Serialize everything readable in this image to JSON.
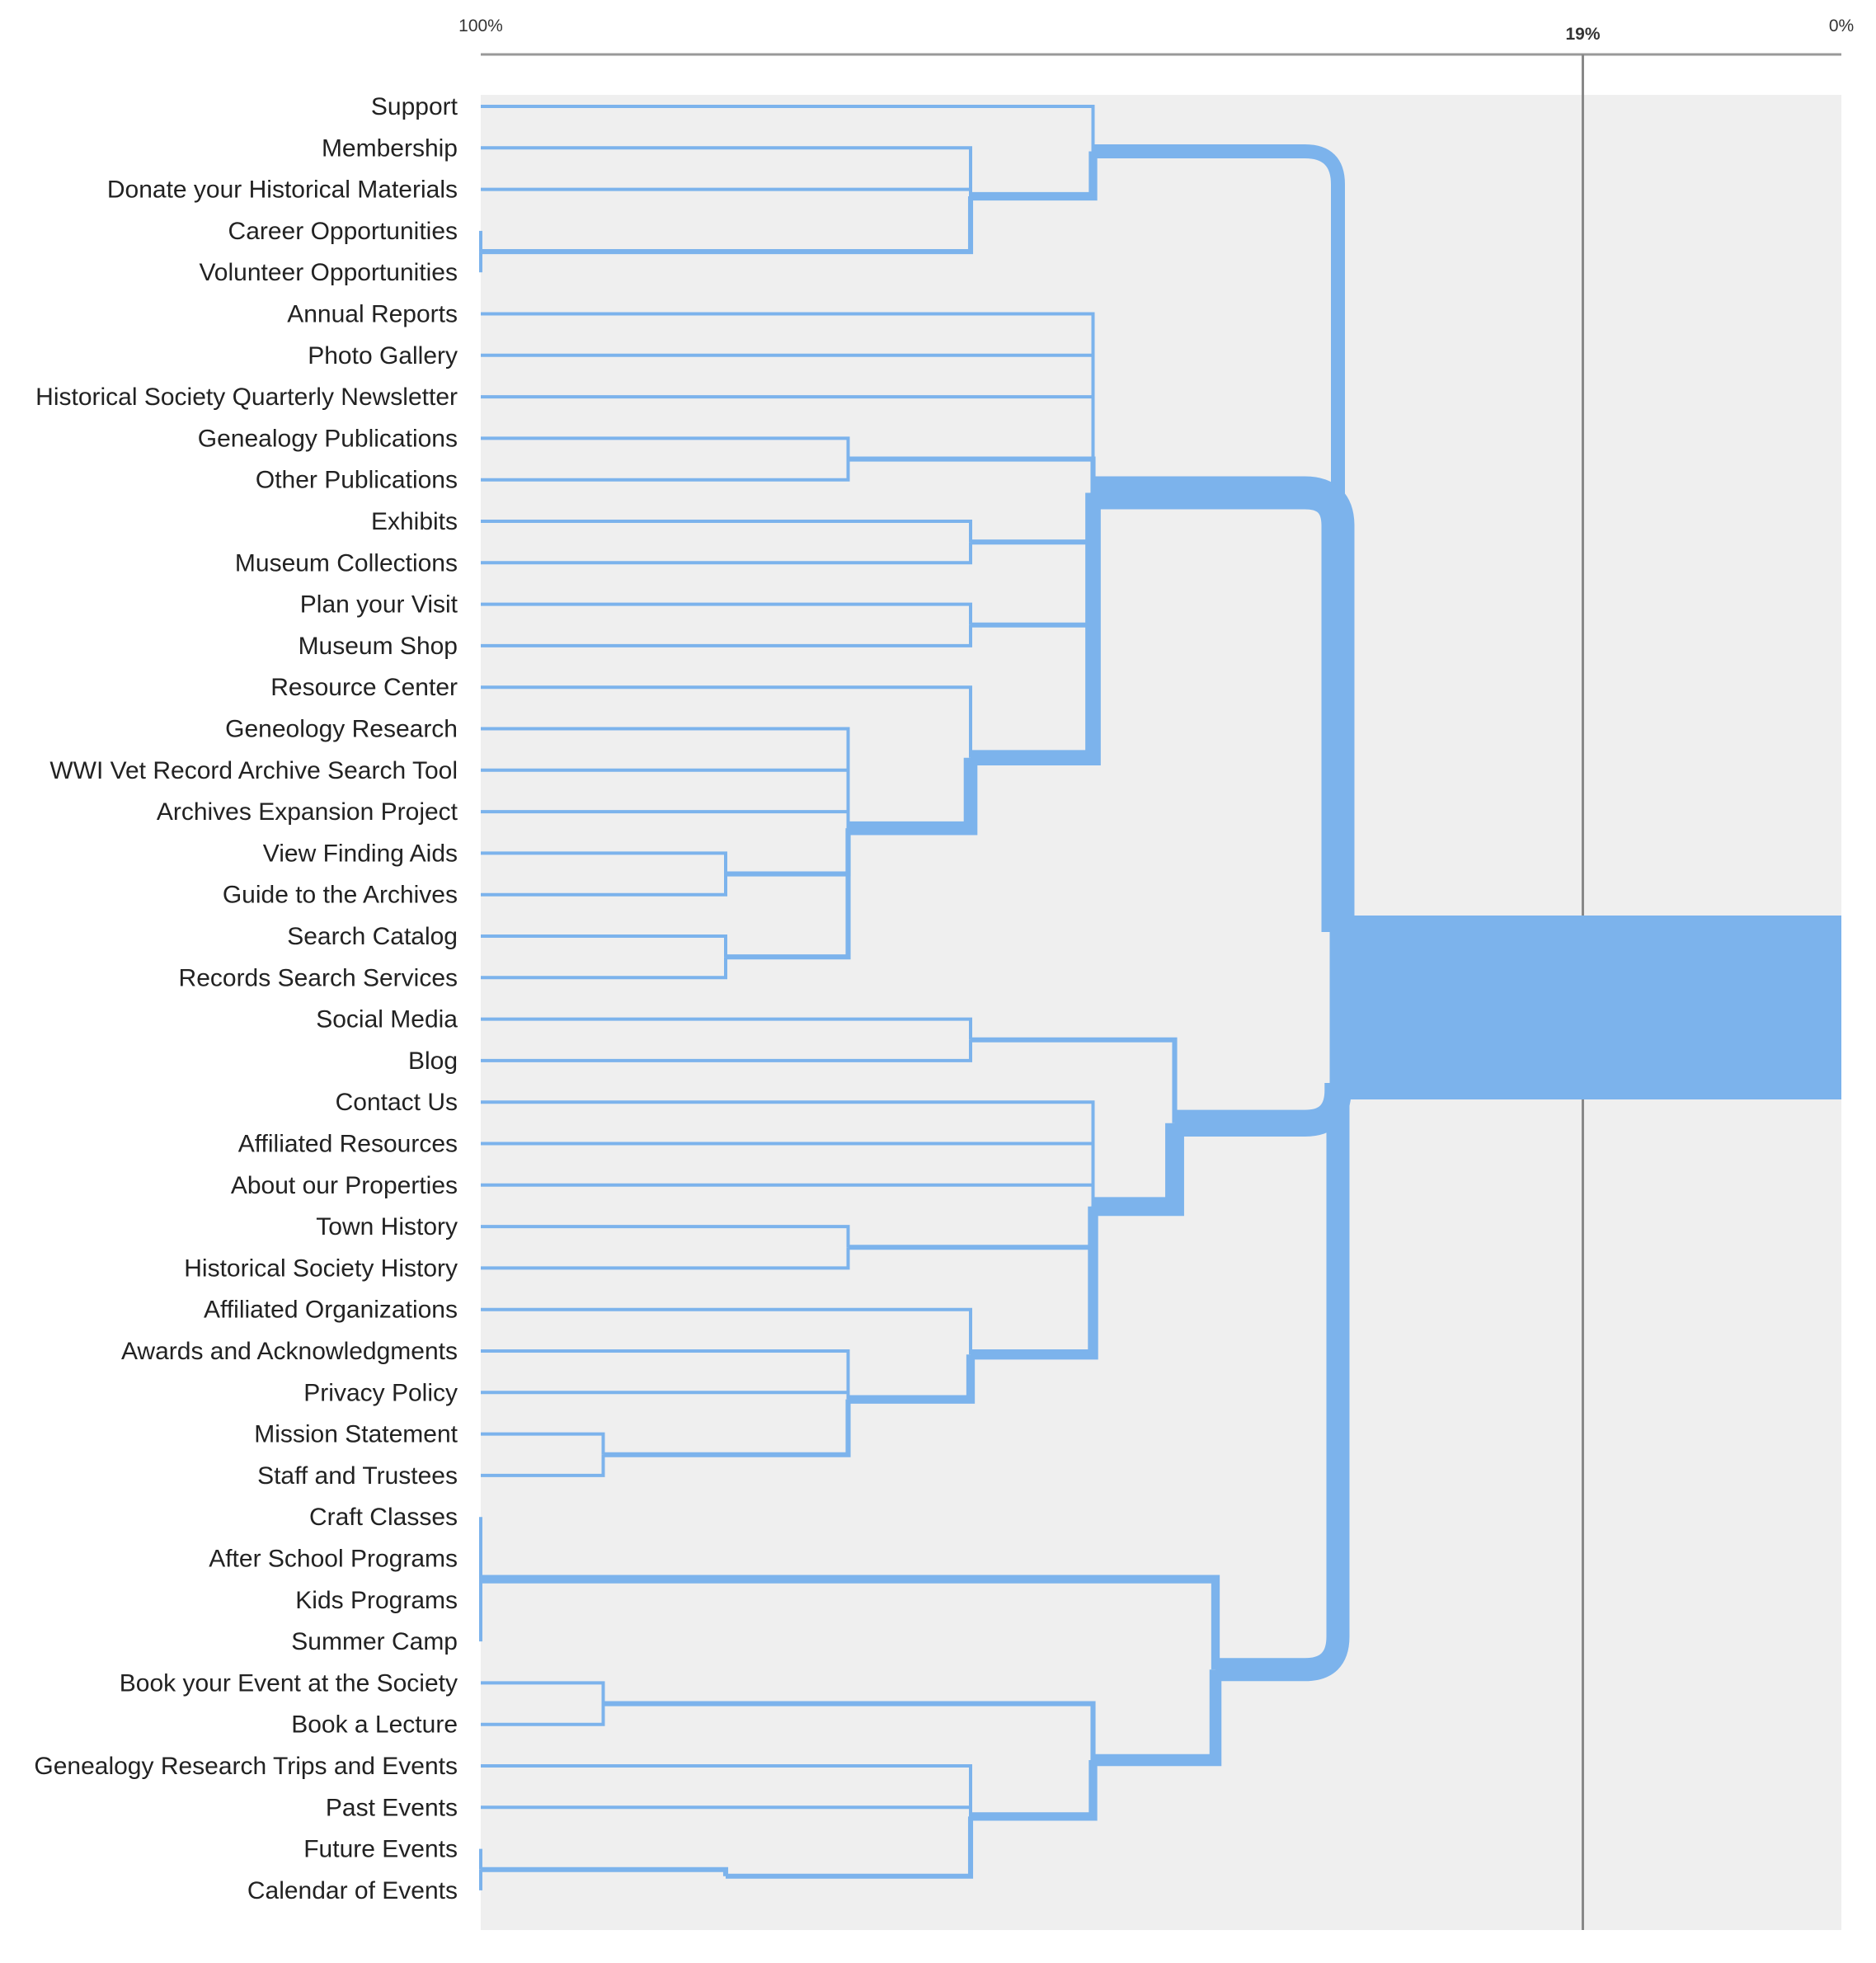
{
  "axis": {
    "ticks": [
      {
        "label": "100%",
        "value": 100
      },
      {
        "label": "19%",
        "value": 19,
        "reference_line": true
      },
      {
        "label": "0%",
        "value": 0
      }
    ]
  },
  "colors": {
    "branch": "#7cb3ec",
    "plot_background": "#efefef",
    "axis": "#999999",
    "reference_line": "#888888",
    "label": "#222222"
  },
  "leaves": [
    "Support",
    "Membership",
    "Donate your Historical Materials",
    "Career Opportunities",
    "Volunteer Opportunities",
    "Annual Reports",
    "Photo Gallery",
    "Historical Society Quarterly Newsletter",
    "Genealogy Publications",
    "Other Publications",
    "Exhibits",
    "Museum Collections",
    "Plan your Visit",
    "Museum Shop",
    "Resource Center",
    "Geneology Research",
    "WWI Vet Record Archive Search Tool",
    "Archives Expansion Project",
    "View Finding Aids",
    "Guide to the Archives",
    "Search Catalog",
    "Records Search Services",
    "Social Media",
    "Blog",
    "Contact Us",
    "Affiliated Resources",
    "About our Properties",
    "Town History",
    "Historical Society History",
    "Affiliated Organizations",
    "Awards and Acknowledgments",
    "Privacy Policy",
    "Mission Statement",
    "Staff and Trustees",
    "Craft Classes",
    "After School Programs",
    "Kids Programs",
    "Summer Camp",
    "Book your Event at the Society",
    "Book a Lecture",
    "Genealogy Research Trips and Events",
    "Past Events",
    "Future Events",
    "Calendar of Events"
  ],
  "clusters": [
    {
      "id": "V1",
      "children": [
        "Career Opportunities",
        "Volunteer Opportunities"
      ],
      "agreement": 100
    },
    {
      "id": "A1",
      "children": [
        "Membership",
        "Donate your Historical Materials",
        "V1"
      ],
      "agreement": 64
    },
    {
      "id": "A2",
      "children": [
        "Support",
        "A1"
      ],
      "agreement": 55
    },
    {
      "id": "P1",
      "children": [
        "Genealogy Publications",
        "Other Publications"
      ],
      "agreement": 73
    },
    {
      "id": "M1",
      "children": [
        "Exhibits",
        "Museum Collections"
      ],
      "agreement": 64
    },
    {
      "id": "M2",
      "children": [
        "Plan your Visit",
        "Museum Shop"
      ],
      "agreement": 64
    },
    {
      "id": "R1",
      "children": [
        "View Finding Aids",
        "Guide to the Archives"
      ],
      "agreement": 82
    },
    {
      "id": "R2",
      "children": [
        "Search Catalog",
        "Records Search Services"
      ],
      "agreement": 82
    },
    {
      "id": "R3",
      "children": [
        "Geneology Research",
        "WWI Vet Record Archive Search Tool",
        "Archives Expansion Project",
        "R1",
        "R2"
      ],
      "agreement": 73
    },
    {
      "id": "R4",
      "children": [
        "Resource Center",
        "R3"
      ],
      "agreement": 64
    },
    {
      "id": "B1",
      "children": [
        "Annual Reports",
        "Photo Gallery",
        "Historical Society Quarterly Newsletter",
        "P1",
        "M1",
        "M2",
        "R4"
      ],
      "agreement": 55
    },
    {
      "id": "S1",
      "children": [
        "Social Media",
        "Blog"
      ],
      "agreement": 64
    },
    {
      "id": "H1",
      "children": [
        "Town History",
        "Historical Society History"
      ],
      "agreement": 73
    },
    {
      "id": "O1",
      "children": [
        "Mission Statement",
        "Staff and Trustees"
      ],
      "agreement": 91
    },
    {
      "id": "O2",
      "children": [
        "Awards and Acknowledgments",
        "Privacy Policy",
        "O1"
      ],
      "agreement": 73
    },
    {
      "id": "O3",
      "children": [
        "Affiliated Organizations",
        "O2"
      ],
      "agreement": 64
    },
    {
      "id": "C1",
      "children": [
        "Contact Us",
        "Affiliated Resources",
        "About our Properties",
        "H1",
        "O3"
      ],
      "agreement": 55
    },
    {
      "id": "C2",
      "children": [
        "S1",
        "C1"
      ],
      "agreement": 49
    },
    {
      "id": "K1",
      "children": [
        "Craft Classes",
        "After School Programs",
        "Kids Programs",
        "Summer Camp"
      ],
      "agreement": 100
    },
    {
      "id": "E1",
      "children": [
        "Book your Event at the Society",
        "Book a Lecture"
      ],
      "agreement": 91
    },
    {
      "id": "E2",
      "children": [
        "Future Events",
        "Calendar of Events"
      ],
      "agreement": 100
    },
    {
      "id": "E3",
      "children": [
        "E2"
      ],
      "agreement": 82
    },
    {
      "id": "E4",
      "children": [
        "Genealogy Research Trips and Events",
        "Past Events",
        "E3"
      ],
      "agreement": 64
    },
    {
      "id": "E5",
      "children": [
        "E1",
        "E4"
      ],
      "agreement": 55
    },
    {
      "id": "E6",
      "children": [
        "K1",
        "E5"
      ],
      "agreement": 46
    },
    {
      "id": "ROOT",
      "children": [
        "A2",
        "B1",
        "C2",
        "E6"
      ],
      "agreement": 37
    }
  ]
}
